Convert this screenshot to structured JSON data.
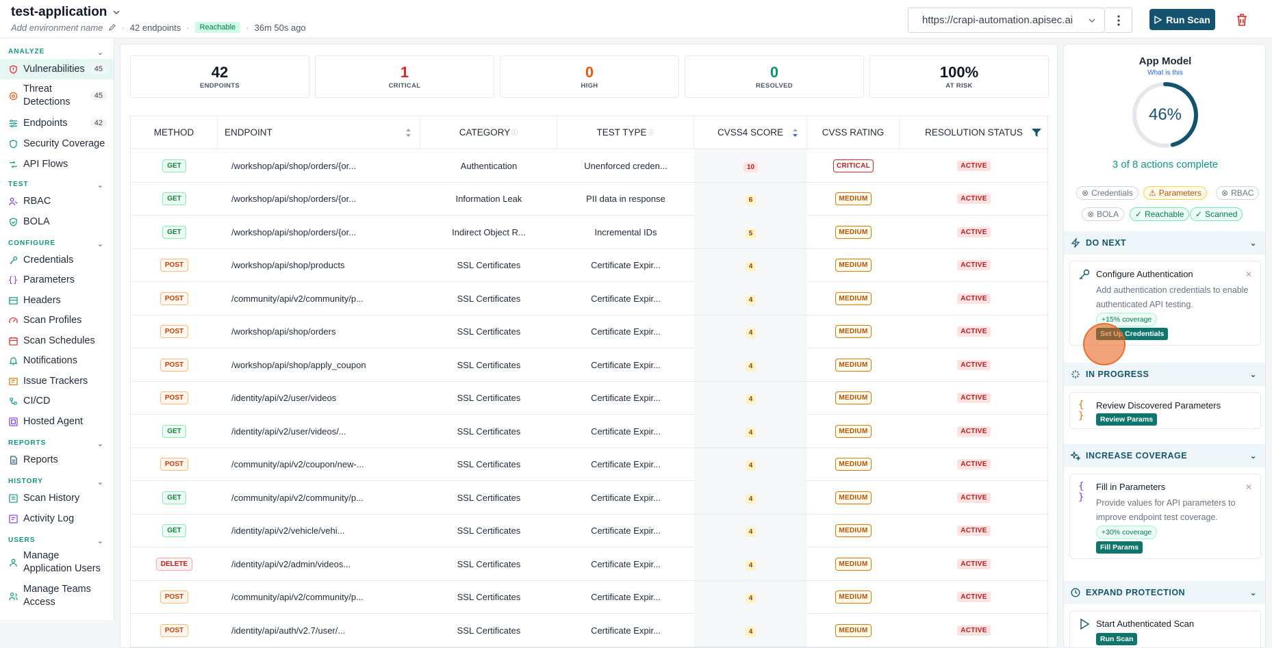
{
  "header": {
    "app_name": "test-application",
    "env_placeholder": "Add environment name",
    "endpoints_count": "42 endpoints",
    "reach_badge": "Reachable",
    "last_scan": "36m 50s ago",
    "url": "https://crapi-automation.apisec.ai",
    "run_scan_label": "Run Scan"
  },
  "sidebar": {
    "sections": {
      "analyze": "ANALYZE",
      "test": "TEST",
      "configure": "CONFIGURE",
      "reports": "REPORTS",
      "history": "HISTORY",
      "users": "USERS"
    },
    "items": {
      "vulnerabilities": {
        "label": "Vulnerabilities",
        "count": "45"
      },
      "threat_detections": {
        "label": "Threat Detections",
        "count": "45"
      },
      "endpoints": {
        "label": "Endpoints",
        "count": "42"
      },
      "security_coverage": {
        "label": "Security Coverage"
      },
      "api_flows": {
        "label": "API Flows"
      },
      "rbac": {
        "label": "RBAC"
      },
      "bola": {
        "label": "BOLA"
      },
      "credentials": {
        "label": "Credentials"
      },
      "parameters": {
        "label": "Parameters"
      },
      "headers": {
        "label": "Headers"
      },
      "scan_profiles": {
        "label": "Scan Profiles"
      },
      "scan_schedules": {
        "label": "Scan Schedules"
      },
      "notifications": {
        "label": "Notifications"
      },
      "issue_trackers": {
        "label": "Issue Trackers"
      },
      "cicd": {
        "label": "CI/CD"
      },
      "hosted_agent": {
        "label": "Hosted Agent"
      },
      "reports": {
        "label": "Reports"
      },
      "scan_history": {
        "label": "Scan History"
      },
      "activity_log": {
        "label": "Activity Log"
      },
      "manage_app_users": {
        "label": "Manage Application Users"
      },
      "manage_teams": {
        "label": "Manage Teams Access"
      }
    }
  },
  "stats": [
    {
      "value": "42",
      "label": "ENDPOINTS",
      "color": "#111827"
    },
    {
      "value": "1",
      "label": "CRITICAL",
      "color": "#dc2626"
    },
    {
      "value": "0",
      "label": "HIGH",
      "color": "#ea580c"
    },
    {
      "value": "0",
      "label": "RESOLVED",
      "color": "#059669"
    },
    {
      "value": "100%",
      "label": "AT RISK",
      "color": "#111827"
    }
  ],
  "table": {
    "headers": {
      "method": "METHOD",
      "endpoint": "ENDPOINT",
      "category": "CATEGORY",
      "test_type": "TEST TYPE",
      "score": "CVSS4 SCORE",
      "rating": "CVSS RATING",
      "status": "RESOLUTION STATUS"
    },
    "rows": [
      {
        "method": "GET",
        "endpoint": "/workshop/api/shop/orders/{or...",
        "category": "Authentication",
        "test_type": "Unenforced creden...",
        "score": "10",
        "rating": "CRITICAL",
        "status": "ACTIVE"
      },
      {
        "method": "GET",
        "endpoint": "/workshop/api/shop/orders/{or...",
        "category": "Information Leak",
        "test_type": "PII data in response",
        "score": "6",
        "rating": "MEDIUM",
        "status": "ACTIVE"
      },
      {
        "method": "GET",
        "endpoint": "/workshop/api/shop/orders/{or...",
        "category": "Indirect Object R...",
        "test_type": "Incremental IDs",
        "score": "5",
        "rating": "MEDIUM",
        "status": "ACTIVE"
      },
      {
        "method": "POST",
        "endpoint": "/workshop/api/shop/products",
        "category": "SSL Certificates",
        "test_type": "Certificate Expir...",
        "score": "4",
        "rating": "MEDIUM",
        "status": "ACTIVE"
      },
      {
        "method": "POST",
        "endpoint": "/community/api/v2/community/p...",
        "category": "SSL Certificates",
        "test_type": "Certificate Expir...",
        "score": "4",
        "rating": "MEDIUM",
        "status": "ACTIVE"
      },
      {
        "method": "POST",
        "endpoint": "/workshop/api/shop/orders",
        "category": "SSL Certificates",
        "test_type": "Certificate Expir...",
        "score": "4",
        "rating": "MEDIUM",
        "status": "ACTIVE"
      },
      {
        "method": "POST",
        "endpoint": "/workshop/api/shop/apply_coupon",
        "category": "SSL Certificates",
        "test_type": "Certificate Expir...",
        "score": "4",
        "rating": "MEDIUM",
        "status": "ACTIVE"
      },
      {
        "method": "POST",
        "endpoint": "/identity/api/v2/user/videos",
        "category": "SSL Certificates",
        "test_type": "Certificate Expir...",
        "score": "4",
        "rating": "MEDIUM",
        "status": "ACTIVE"
      },
      {
        "method": "GET",
        "endpoint": "/identity/api/v2/user/videos/...",
        "category": "SSL Certificates",
        "test_type": "Certificate Expir...",
        "score": "4",
        "rating": "MEDIUM",
        "status": "ACTIVE"
      },
      {
        "method": "POST",
        "endpoint": "/community/api/v2/coupon/new-...",
        "category": "SSL Certificates",
        "test_type": "Certificate Expir...",
        "score": "4",
        "rating": "MEDIUM",
        "status": "ACTIVE"
      },
      {
        "method": "GET",
        "endpoint": "/community/api/v2/community/p...",
        "category": "SSL Certificates",
        "test_type": "Certificate Expir...",
        "score": "4",
        "rating": "MEDIUM",
        "status": "ACTIVE"
      },
      {
        "method": "GET",
        "endpoint": "/identity/api/v2/vehicle/vehi...",
        "category": "SSL Certificates",
        "test_type": "Certificate Expir...",
        "score": "4",
        "rating": "MEDIUM",
        "status": "ACTIVE"
      },
      {
        "method": "DELETE",
        "endpoint": "/identity/api/v2/admin/videos...",
        "category": "SSL Certificates",
        "test_type": "Certificate Expir...",
        "score": "4",
        "rating": "MEDIUM",
        "status": "ACTIVE"
      },
      {
        "method": "POST",
        "endpoint": "/community/api/v2/community/p...",
        "category": "SSL Certificates",
        "test_type": "Certificate Expir...",
        "score": "4",
        "rating": "MEDIUM",
        "status": "ACTIVE"
      },
      {
        "method": "POST",
        "endpoint": "/identity/api/auth/v2.7/user/...",
        "category": "SSL Certificates",
        "test_type": "Certificate Expir...",
        "score": "4",
        "rating": "MEDIUM",
        "status": "ACTIVE"
      }
    ]
  },
  "app_model": {
    "title": "App Model",
    "link": "What is this",
    "percent_text": "46%",
    "percent": 46,
    "progress_text": "3 of 8 actions complete",
    "chips": [
      {
        "label": "Credentials",
        "state": "gray"
      },
      {
        "label": "Parameters",
        "state": "amber"
      },
      {
        "label": "RBAC",
        "state": "gray"
      },
      {
        "label": "BOLA",
        "state": "gray"
      },
      {
        "label": "Reachable",
        "state": "green"
      },
      {
        "label": "Scanned",
        "state": "green"
      }
    ],
    "do_next": {
      "title": "DO NEXT",
      "card_title": "Configure Authentication",
      "card_desc": "Add authentication credentials to enable authenticated API testing.",
      "coverage": "+15% coverage",
      "button": "Set Up Credentials"
    },
    "in_progress": {
      "title": "IN PROGRESS",
      "card_title": "Review Discovered Parameters",
      "button": "Review Params"
    },
    "increase_coverage": {
      "title": "INCREASE COVERAGE",
      "card_title": "Fill in Parameters",
      "card_desc": "Provide values for API parameters to improve endpoint test coverage.",
      "coverage": "+30% coverage",
      "button": "Fill Params"
    },
    "expand_protection": {
      "title": "EXPAND PROTECTION",
      "card_title": "Start Authenticated Scan",
      "button": "Run Scan"
    }
  }
}
